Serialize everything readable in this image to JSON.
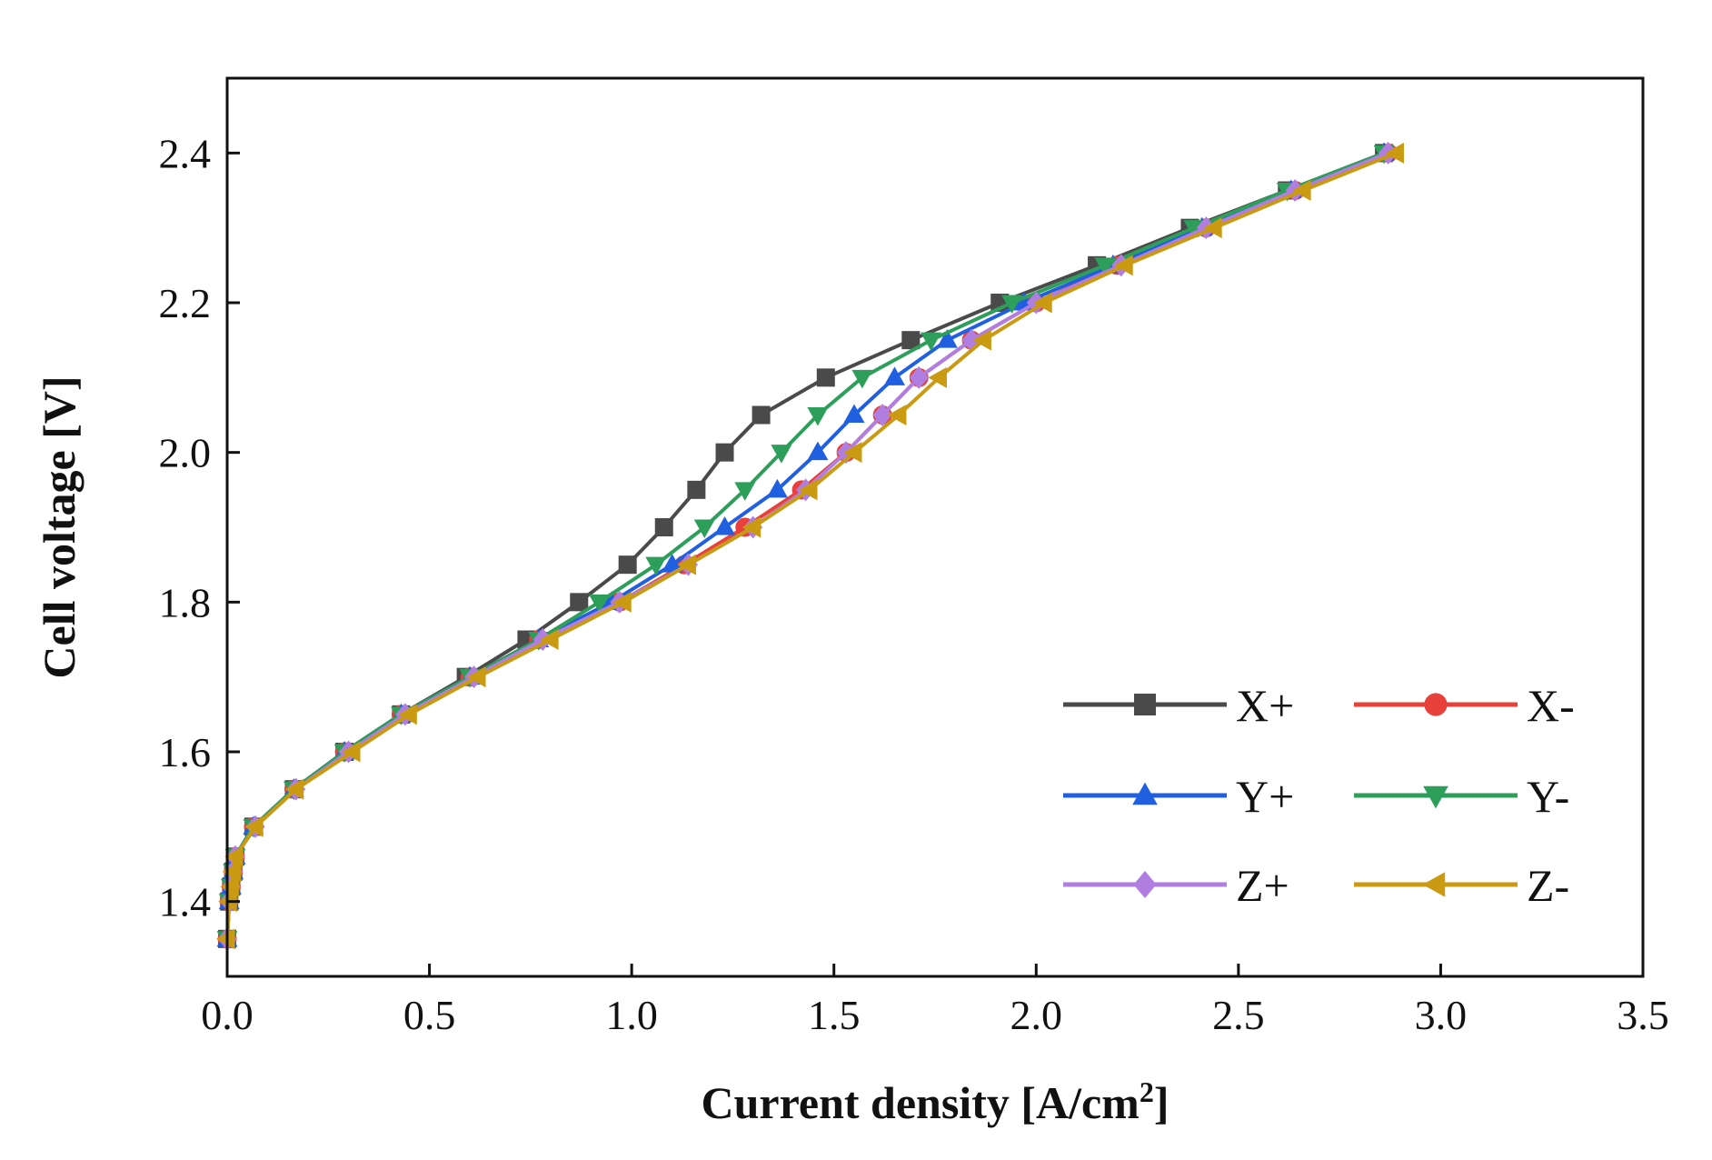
{
  "chart_data": {
    "type": "line",
    "title": "",
    "xlabel_main": "Current density [A/cm",
    "xlabel_sup": "2",
    "xlabel_end": "]",
    "ylabel": "Cell voltage [V]",
    "xlim": [
      0,
      3.5
    ],
    "ylim": [
      1.3,
      2.5
    ],
    "xticks": [
      "0.0",
      "0.5",
      "1.0",
      "1.5",
      "2.0",
      "2.5",
      "3.0",
      "3.5"
    ],
    "yticks": [
      "1.4",
      "1.6",
      "1.8",
      "2.0",
      "2.2",
      "2.4"
    ],
    "grid": false,
    "legend_position": "bottom-right",
    "series": [
      {
        "name": "X+",
        "color": "#4a4a4a",
        "marker": "square",
        "x": [
          0,
          0.005,
          0.01,
          0.015,
          0.02,
          0.065,
          0.165,
          0.29,
          0.43,
          0.59,
          0.74,
          0.87,
          0.99,
          1.08,
          1.16,
          1.23,
          1.32,
          1.48,
          1.69,
          1.91,
          2.15,
          2.38,
          2.62,
          2.86
        ],
        "y": [
          1.35,
          1.4,
          1.42,
          1.44,
          1.46,
          1.5,
          1.55,
          1.6,
          1.65,
          1.7,
          1.75,
          1.8,
          1.85,
          1.9,
          1.95,
          2.0,
          2.05,
          2.1,
          2.15,
          2.2,
          2.25,
          2.3,
          2.35,
          2.4
        ]
      },
      {
        "name": "X-",
        "color": "#e8413b",
        "marker": "circle",
        "x": [
          0,
          0.005,
          0.01,
          0.015,
          0.02,
          0.065,
          0.165,
          0.29,
          0.43,
          0.6,
          0.77,
          0.97,
          1.13,
          1.28,
          1.42,
          1.53,
          1.62,
          1.71,
          1.84,
          2.0,
          2.2,
          2.42,
          2.64,
          2.87
        ],
        "y": [
          1.35,
          1.4,
          1.42,
          1.44,
          1.46,
          1.5,
          1.55,
          1.6,
          1.65,
          1.7,
          1.75,
          1.8,
          1.85,
          1.9,
          1.95,
          2.0,
          2.05,
          2.1,
          2.15,
          2.2,
          2.25,
          2.3,
          2.35,
          2.4
        ]
      },
      {
        "name": "Y+",
        "color": "#1f5fe0",
        "marker": "triangle-up",
        "x": [
          0,
          0.005,
          0.01,
          0.015,
          0.02,
          0.065,
          0.165,
          0.29,
          0.43,
          0.6,
          0.77,
          0.95,
          1.1,
          1.23,
          1.36,
          1.46,
          1.55,
          1.65,
          1.78,
          1.97,
          2.19,
          2.41,
          2.63,
          2.86
        ],
        "y": [
          1.35,
          1.4,
          1.42,
          1.44,
          1.46,
          1.5,
          1.55,
          1.6,
          1.65,
          1.7,
          1.75,
          1.8,
          1.85,
          1.9,
          1.95,
          2.0,
          2.05,
          2.1,
          2.15,
          2.2,
          2.25,
          2.3,
          2.35,
          2.4
        ]
      },
      {
        "name": "Y-",
        "color": "#2e9e5b",
        "marker": "triangle-down",
        "x": [
          0,
          0.005,
          0.01,
          0.015,
          0.02,
          0.065,
          0.165,
          0.29,
          0.43,
          0.6,
          0.77,
          0.92,
          1.06,
          1.18,
          1.28,
          1.37,
          1.46,
          1.57,
          1.74,
          1.94,
          2.17,
          2.39,
          2.62,
          2.86
        ],
        "y": [
          1.35,
          1.4,
          1.42,
          1.44,
          1.46,
          1.5,
          1.55,
          1.6,
          1.65,
          1.7,
          1.75,
          1.8,
          1.85,
          1.9,
          1.95,
          2.0,
          2.05,
          2.1,
          2.15,
          2.2,
          2.25,
          2.3,
          2.35,
          2.4
        ]
      },
      {
        "name": "Z+",
        "color": "#b07ee0",
        "marker": "diamond",
        "x": [
          0,
          0.005,
          0.01,
          0.015,
          0.02,
          0.07,
          0.17,
          0.3,
          0.44,
          0.61,
          0.78,
          0.97,
          1.14,
          1.3,
          1.43,
          1.53,
          1.62,
          1.71,
          1.84,
          2.0,
          2.21,
          2.42,
          2.64,
          2.87
        ],
        "y": [
          1.35,
          1.4,
          1.42,
          1.44,
          1.46,
          1.5,
          1.55,
          1.6,
          1.65,
          1.7,
          1.75,
          1.8,
          1.85,
          1.9,
          1.95,
          2.0,
          2.05,
          2.1,
          2.15,
          2.2,
          2.25,
          2.3,
          2.35,
          2.4
        ]
      },
      {
        "name": "Z-",
        "color": "#c99a12",
        "marker": "triangle-left",
        "x": [
          0,
          0.005,
          0.01,
          0.015,
          0.02,
          0.07,
          0.17,
          0.31,
          0.45,
          0.62,
          0.8,
          0.98,
          1.14,
          1.3,
          1.44,
          1.55,
          1.66,
          1.76,
          1.87,
          2.02,
          2.22,
          2.44,
          2.66,
          2.89
        ],
        "y": [
          1.35,
          1.4,
          1.42,
          1.44,
          1.46,
          1.5,
          1.55,
          1.6,
          1.65,
          1.7,
          1.75,
          1.8,
          1.85,
          1.9,
          1.95,
          2.0,
          2.05,
          2.1,
          2.15,
          2.2,
          2.25,
          2.3,
          2.35,
          2.4
        ]
      }
    ]
  }
}
